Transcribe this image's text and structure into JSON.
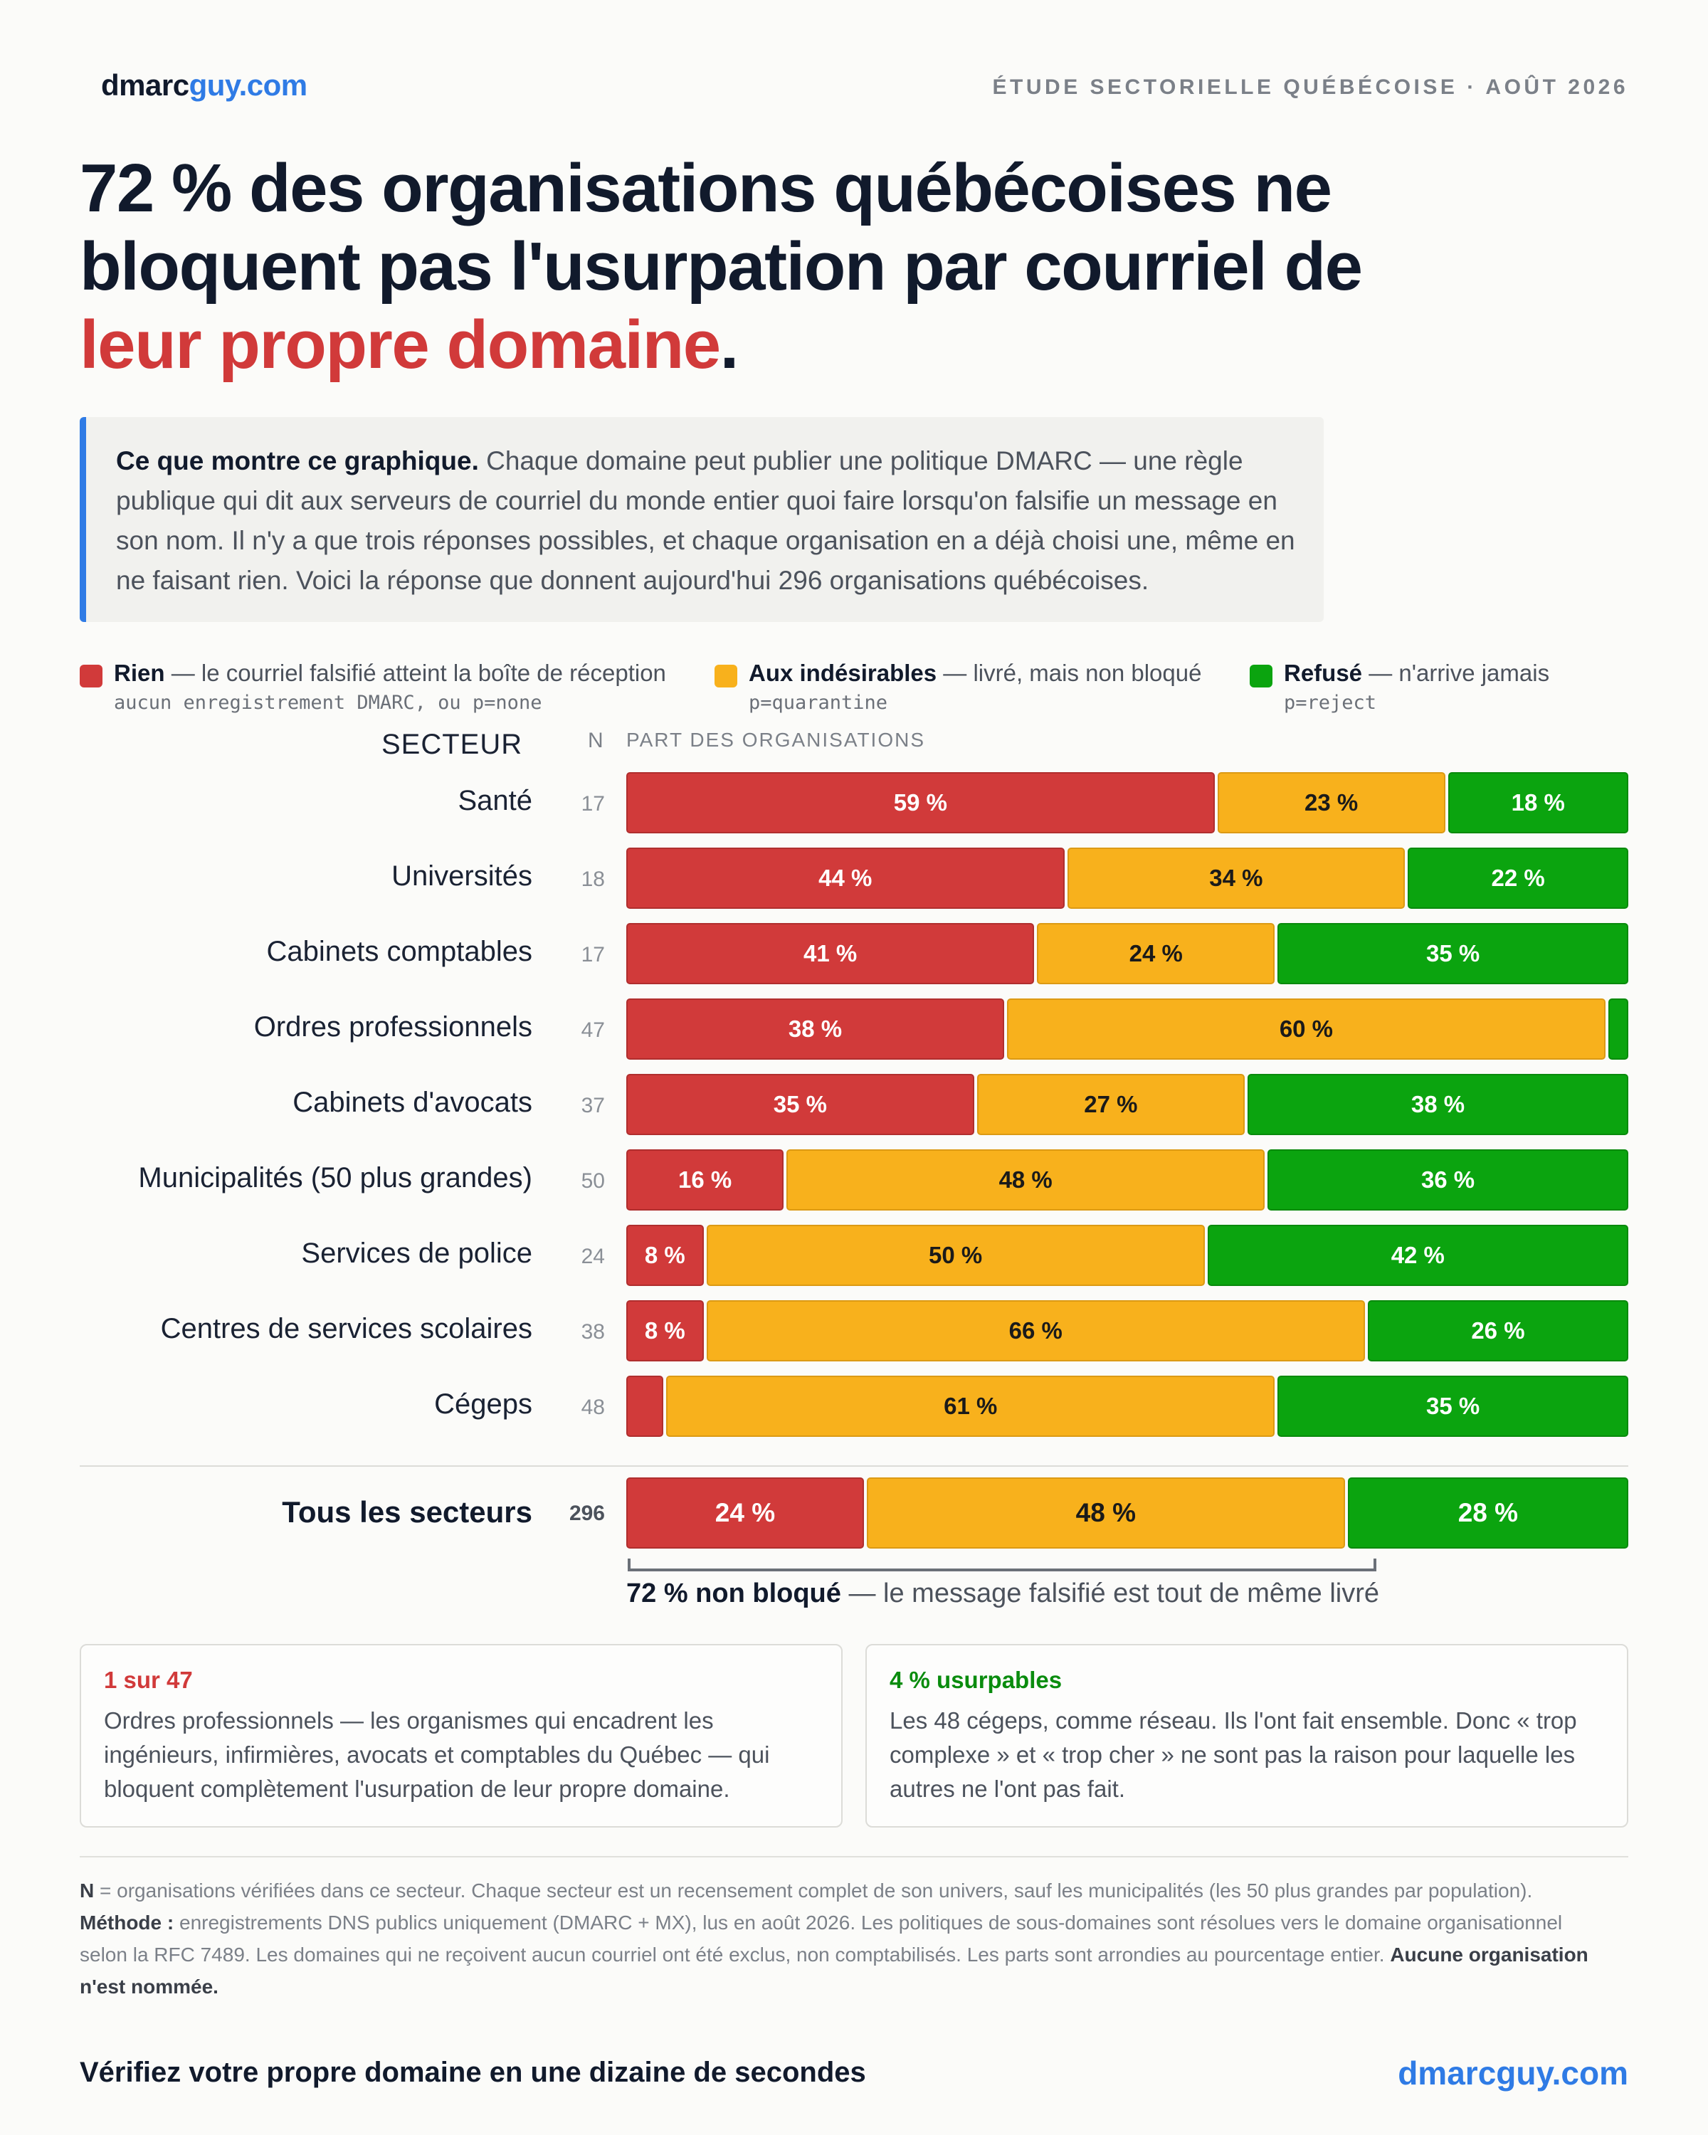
{
  "header": {
    "logo_main": "dmarc",
    "logo_accent": "guy.com",
    "kicker": "Étude sectorielle québécoise · août 2026"
  },
  "headline": {
    "line1": "72 % des organisations québécoises ne",
    "line2": "bloquent pas l'usurpation par courriel de",
    "highlight": "leur propre domaine",
    "end": "."
  },
  "intro": {
    "lead": "Ce que montre ce graphique.",
    "text": "Chaque domaine peut publier une politique DMARC — une règle publique qui dit aux serveurs de courriel du monde entier quoi faire lorsqu'on falsifie un message en son nom. Il n'y a que trois réponses possibles, et chaque organisation en a déjà choisi une, même en ne faisant rien. Voici la réponse que donnent aujourd'hui 296 organisations québécoises."
  },
  "legend": [
    {
      "name": "Rien",
      "desc": "— le courriel falsifié atteint la boîte de réception",
      "code": "aucun enregistrement DMARC, ou p=none",
      "color": "#d13a3a"
    },
    {
      "name": "Aux indésirables",
      "desc": "— livré, mais non bloqué",
      "code": "p=quarantine",
      "color": "#f8b11c"
    },
    {
      "name": "Refusé",
      "desc": "— n'arrive jamais",
      "code": "p=reject",
      "color": "#0ba40f"
    }
  ],
  "columns": {
    "sector": "SECTEUR",
    "n": "N",
    "share": "PART DES ORGANISATIONS"
  },
  "chart_data": {
    "type": "bar",
    "stacked": true,
    "orientation": "horizontal",
    "percent_suffix": " %",
    "categories": [
      "Santé",
      "Universités",
      "Cabinets comptables",
      "Ordres professionnels",
      "Cabinets d'avocats",
      "Municipalités (50 plus grandes)",
      "Services de police",
      "Centres de services scolaires",
      "Cégeps"
    ],
    "n": [
      17,
      18,
      17,
      47,
      37,
      50,
      24,
      38,
      48
    ],
    "series": [
      {
        "name": "Rien",
        "color": "#d13a3a",
        "values": [
          59,
          44,
          41,
          38,
          35,
          16,
          8,
          8,
          4
        ]
      },
      {
        "name": "Aux indésirables",
        "color": "#f8b11c",
        "values": [
          23,
          34,
          24,
          60,
          27,
          48,
          50,
          66,
          61
        ]
      },
      {
        "name": "Refusé",
        "color": "#0ba40f",
        "values": [
          18,
          22,
          35,
          2,
          38,
          36,
          42,
          26,
          35
        ]
      }
    ],
    "total": {
      "label": "Tous les secteurs",
      "n": 296,
      "values": [
        24,
        48,
        28
      ]
    },
    "xlim": [
      0,
      100
    ]
  },
  "bracket": {
    "bold": "72 % non bloqué",
    "text": "— le message falsifié est tout de même livré"
  },
  "cards": [
    {
      "title": "1 sur 47",
      "color": "#d13a3a",
      "body": "Ordres professionnels — les organismes qui encadrent les ingénieurs, infirmières, avocats et comptables du Québec — qui bloquent complètement l'usurpation de leur propre domaine."
    },
    {
      "title": "4 % usurpables",
      "color": "#0a8c0e",
      "body": "Les 48 cégeps, comme réseau. Ils l'ont fait ensemble. Donc « trop complexe » et « trop cher » ne sont pas la raison pour laquelle les autres ne l'ont pas fait."
    }
  ],
  "notes": {
    "n_key": "N",
    "n_text": "= organisations vérifiées dans ce secteur. Chaque secteur est un recensement complet de son univers, sauf les municipalités (les 50 plus grandes par population).",
    "method_key": "Méthode :",
    "method_text": "enregistrements DNS publics uniquement (DMARC + MX), lus en août 2026. Les politiques de sous-domaines sont résolues vers le domaine organisationnel selon la RFC 7489. Les domaines qui ne reçoivent aucun courriel ont été exclus, non comptabilisés. Les parts sont arrondies au pourcentage entier.",
    "anon": "Aucune organisation n'est nommée."
  },
  "footer": {
    "cta": "Vérifiez votre propre domaine en une dizaine de secondes",
    "link": "dmarcguy.com"
  }
}
